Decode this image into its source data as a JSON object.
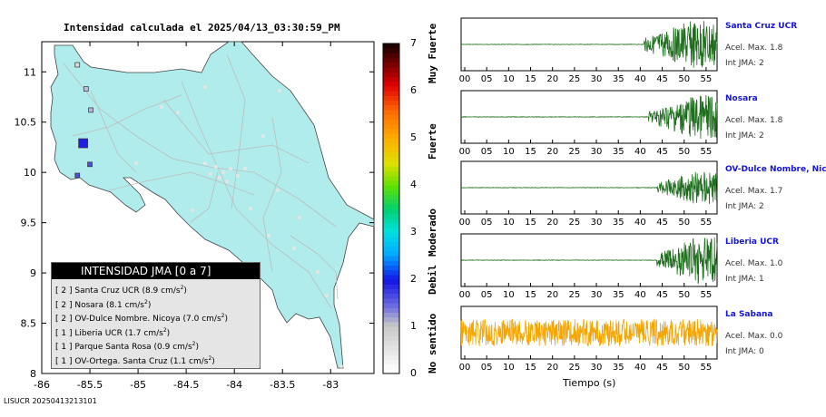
{
  "title": "Intensidad calculada el 2025/04/13_03:30:59_PM",
  "footer": "LISUCR 20250413213101",
  "map": {
    "lon_ticks": [
      "-86",
      "-85.5",
      "-85",
      "-84.5",
      "-84",
      "-83.5",
      "-83"
    ],
    "lat_ticks": [
      "8",
      "8.5",
      "9",
      "9.5",
      "10",
      "10.5",
      "11"
    ],
    "land_color": "#b0ecec",
    "stations": [
      {
        "lon": -85.63,
        "lat": 11.07,
        "color": "#d9d9d9"
      },
      {
        "lon": -85.54,
        "lat": 10.83,
        "color": "#c0c0e0"
      },
      {
        "lon": -85.49,
        "lat": 10.62,
        "color": "#b4b4e0"
      },
      {
        "lon": -85.57,
        "lat": 10.29,
        "color": "#1e1ee6"
      },
      {
        "lon": -85.5,
        "lat": 10.08,
        "color": "#5050dc"
      },
      {
        "lon": -85.63,
        "lat": 9.97,
        "color": "#5050dc"
      }
    ]
  },
  "legend": {
    "header": "INTENSIDAD JMA [0 a 7]",
    "rows": [
      {
        "level": "[ 2 ]",
        "text": "Santa Cruz UCR (8.9 cm/s",
        "exp": "2",
        "tail": ")"
      },
      {
        "level": "[ 2 ]",
        "text": "Nosara (8.1 cm/s",
        "exp": "2",
        "tail": ")"
      },
      {
        "level": "[ 2 ]",
        "text": "OV-Dulce Nombre. Nicoya (7.0 cm/s",
        "exp": "2",
        "tail": ")"
      },
      {
        "level": "[ 1 ]",
        "text": "Liberia UCR (1.7 cm/s",
        "exp": "2",
        "tail": ")"
      },
      {
        "level": "[ 1 ]",
        "text": "Parque Santa Rosa (0.9 cm/s",
        "exp": "2",
        "tail": ")"
      },
      {
        "level": "[ 1 ]",
        "text": "OV-Ortega. Santa Cruz (1.1 cm/s",
        "exp": "2",
        "tail": ")"
      }
    ]
  },
  "colorbar": {
    "labels": [
      "7",
      "6",
      "5",
      "4",
      "3",
      "2",
      "1",
      "0"
    ],
    "classes": [
      "Muy Fuerte",
      "Fuerte",
      "Moderado",
      "Debil",
      "No sentido"
    ]
  },
  "waveforms": {
    "time_ticks": [
      "00",
      "05",
      "10",
      "15",
      "20",
      "25",
      "30",
      "35",
      "40",
      "45",
      "50",
      "55"
    ],
    "xlabel": "Tiempo (s)",
    "stations": [
      {
        "name": "Santa Cruz UCR",
        "accel": "Acel. Max. 1.8",
        "jma": "Int JMA: 2",
        "color": "#1e6e1e",
        "onset": 41,
        "amp": 1.0
      },
      {
        "name": "Nosara",
        "accel": "Acel. Max. 1.8",
        "jma": "Int JMA: 2",
        "color": "#1e6e1e",
        "onset": 42,
        "amp": 0.9
      },
      {
        "name": "OV-Dulce Nombre, Nico",
        "accel": "Acel. Max. 1.7",
        "jma": "Int JMA: 2",
        "color": "#1e6e1e",
        "onset": 44,
        "amp": 0.7
      },
      {
        "name": "Liberia UCR",
        "accel": "Acel. Max. 1.0",
        "jma": "Int JMA: 1",
        "color": "#1e6e1e",
        "onset": 44,
        "amp": 1.0
      },
      {
        "name": "La Sabana",
        "accel": "Acel. Max. 0.0",
        "jma": "Int JMA: 0",
        "color": "#f5a500",
        "onset": 0,
        "amp": 0.55
      }
    ]
  }
}
